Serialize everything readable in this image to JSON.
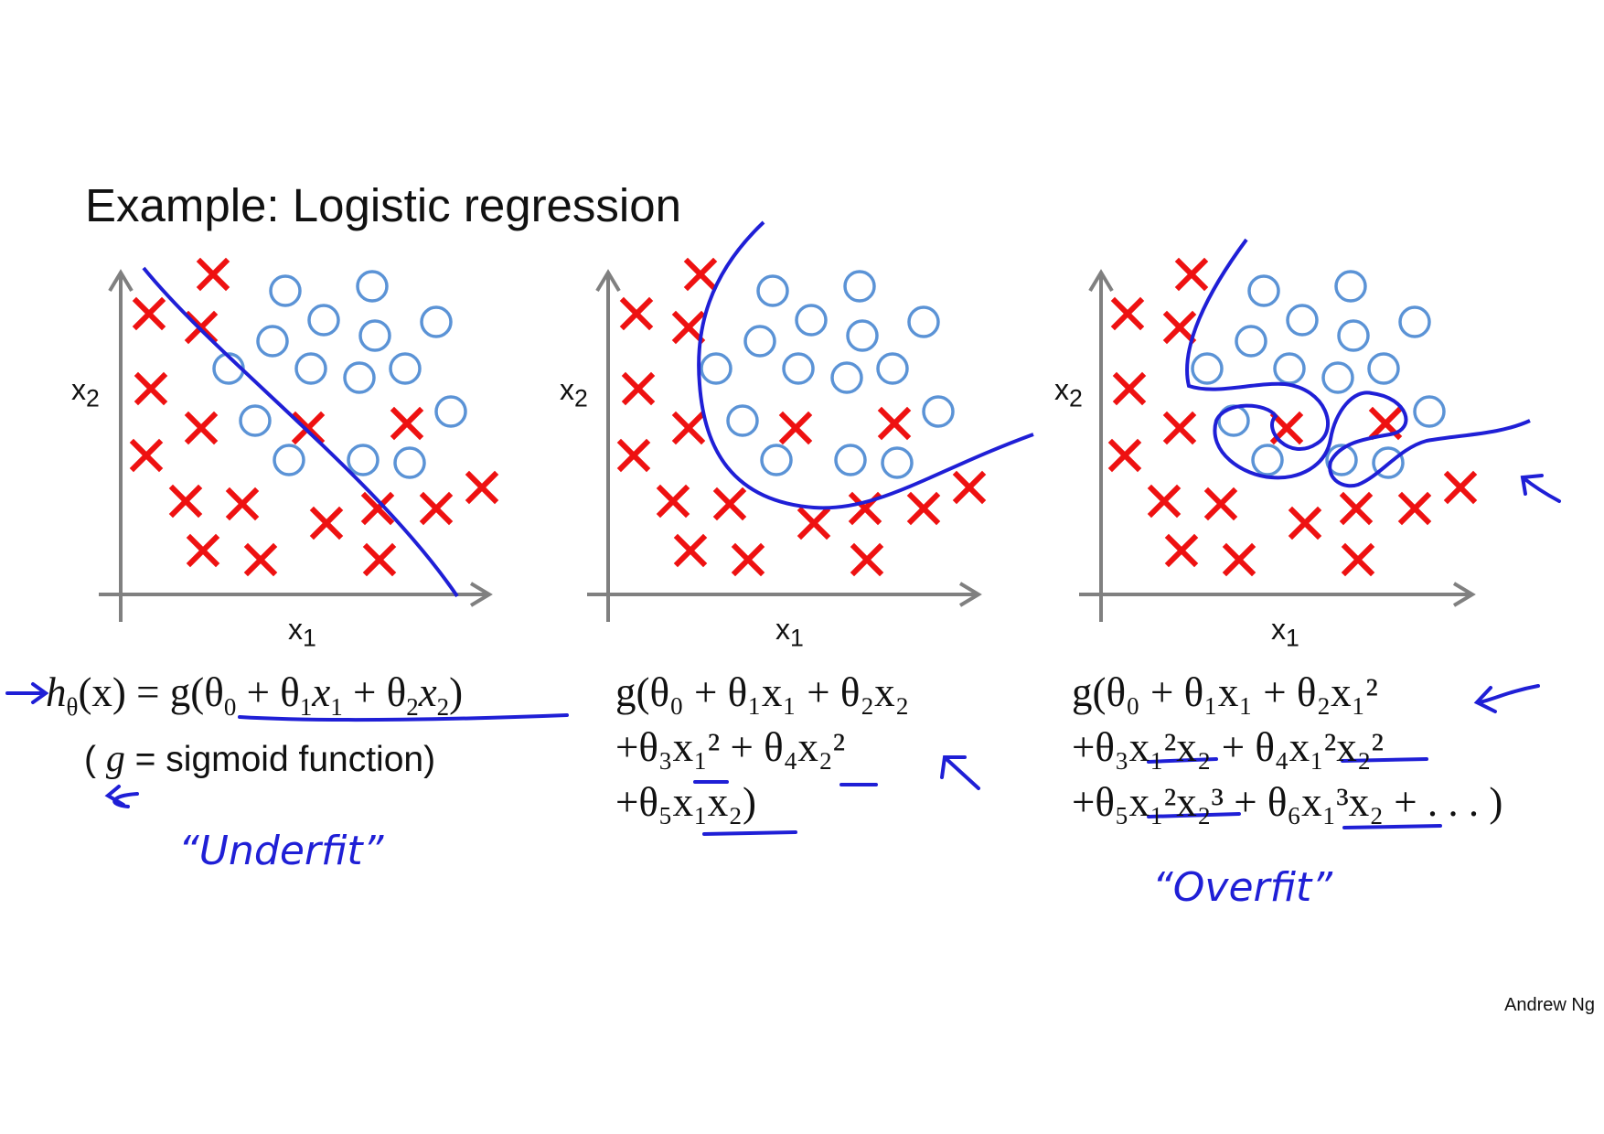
{
  "title": "Example: Logistic regression",
  "author": "Andrew Ng",
  "colors": {
    "positive": "#ee1111",
    "negative": "#5b93d6",
    "ink": "#1f1fd6",
    "axis": "#808080"
  },
  "panels": [
    {
      "x_label": "x",
      "x_label_sub": "1",
      "y_label": "x",
      "y_label_sub": "2",
      "formula": {
        "lines": [
          [
            "h",
            "θ",
            "(x) = g(θ",
            "0",
            " + θ",
            "1",
            "x",
            "1",
            " + θ",
            "2",
            "x",
            "2",
            ")"
          ]
        ]
      },
      "note_prefix": "( ",
      "note_var": "g",
      "note_suffix": " = sigmoid function)",
      "handwritten_label": "“Underfit”"
    },
    {
      "x_label": "x",
      "x_label_sub": "1",
      "y_label": "x",
      "y_label_sub": "2",
      "formula_line_1": "g(θ₀ + θ₁x₁ + θ₂x₂",
      "formula_line_2": "+θ₃x₁² + θ₄x₂²",
      "formula_line_3": "+θ₅x₁x₂)"
    },
    {
      "x_label": "x",
      "x_label_sub": "1",
      "y_label": "x",
      "y_label_sub": "2",
      "formula_line_1": "g(θ₀ + θ₁x₁ + θ₂x₁²",
      "formula_line_2": "+θ₃x₁²x₂ + θ₄x₁²x₂²",
      "formula_line_3": "+θ₅x₁²x₂³ + θ₆x₁³x₂ + . . . )",
      "handwritten_label": "“Overfit”"
    }
  ]
}
